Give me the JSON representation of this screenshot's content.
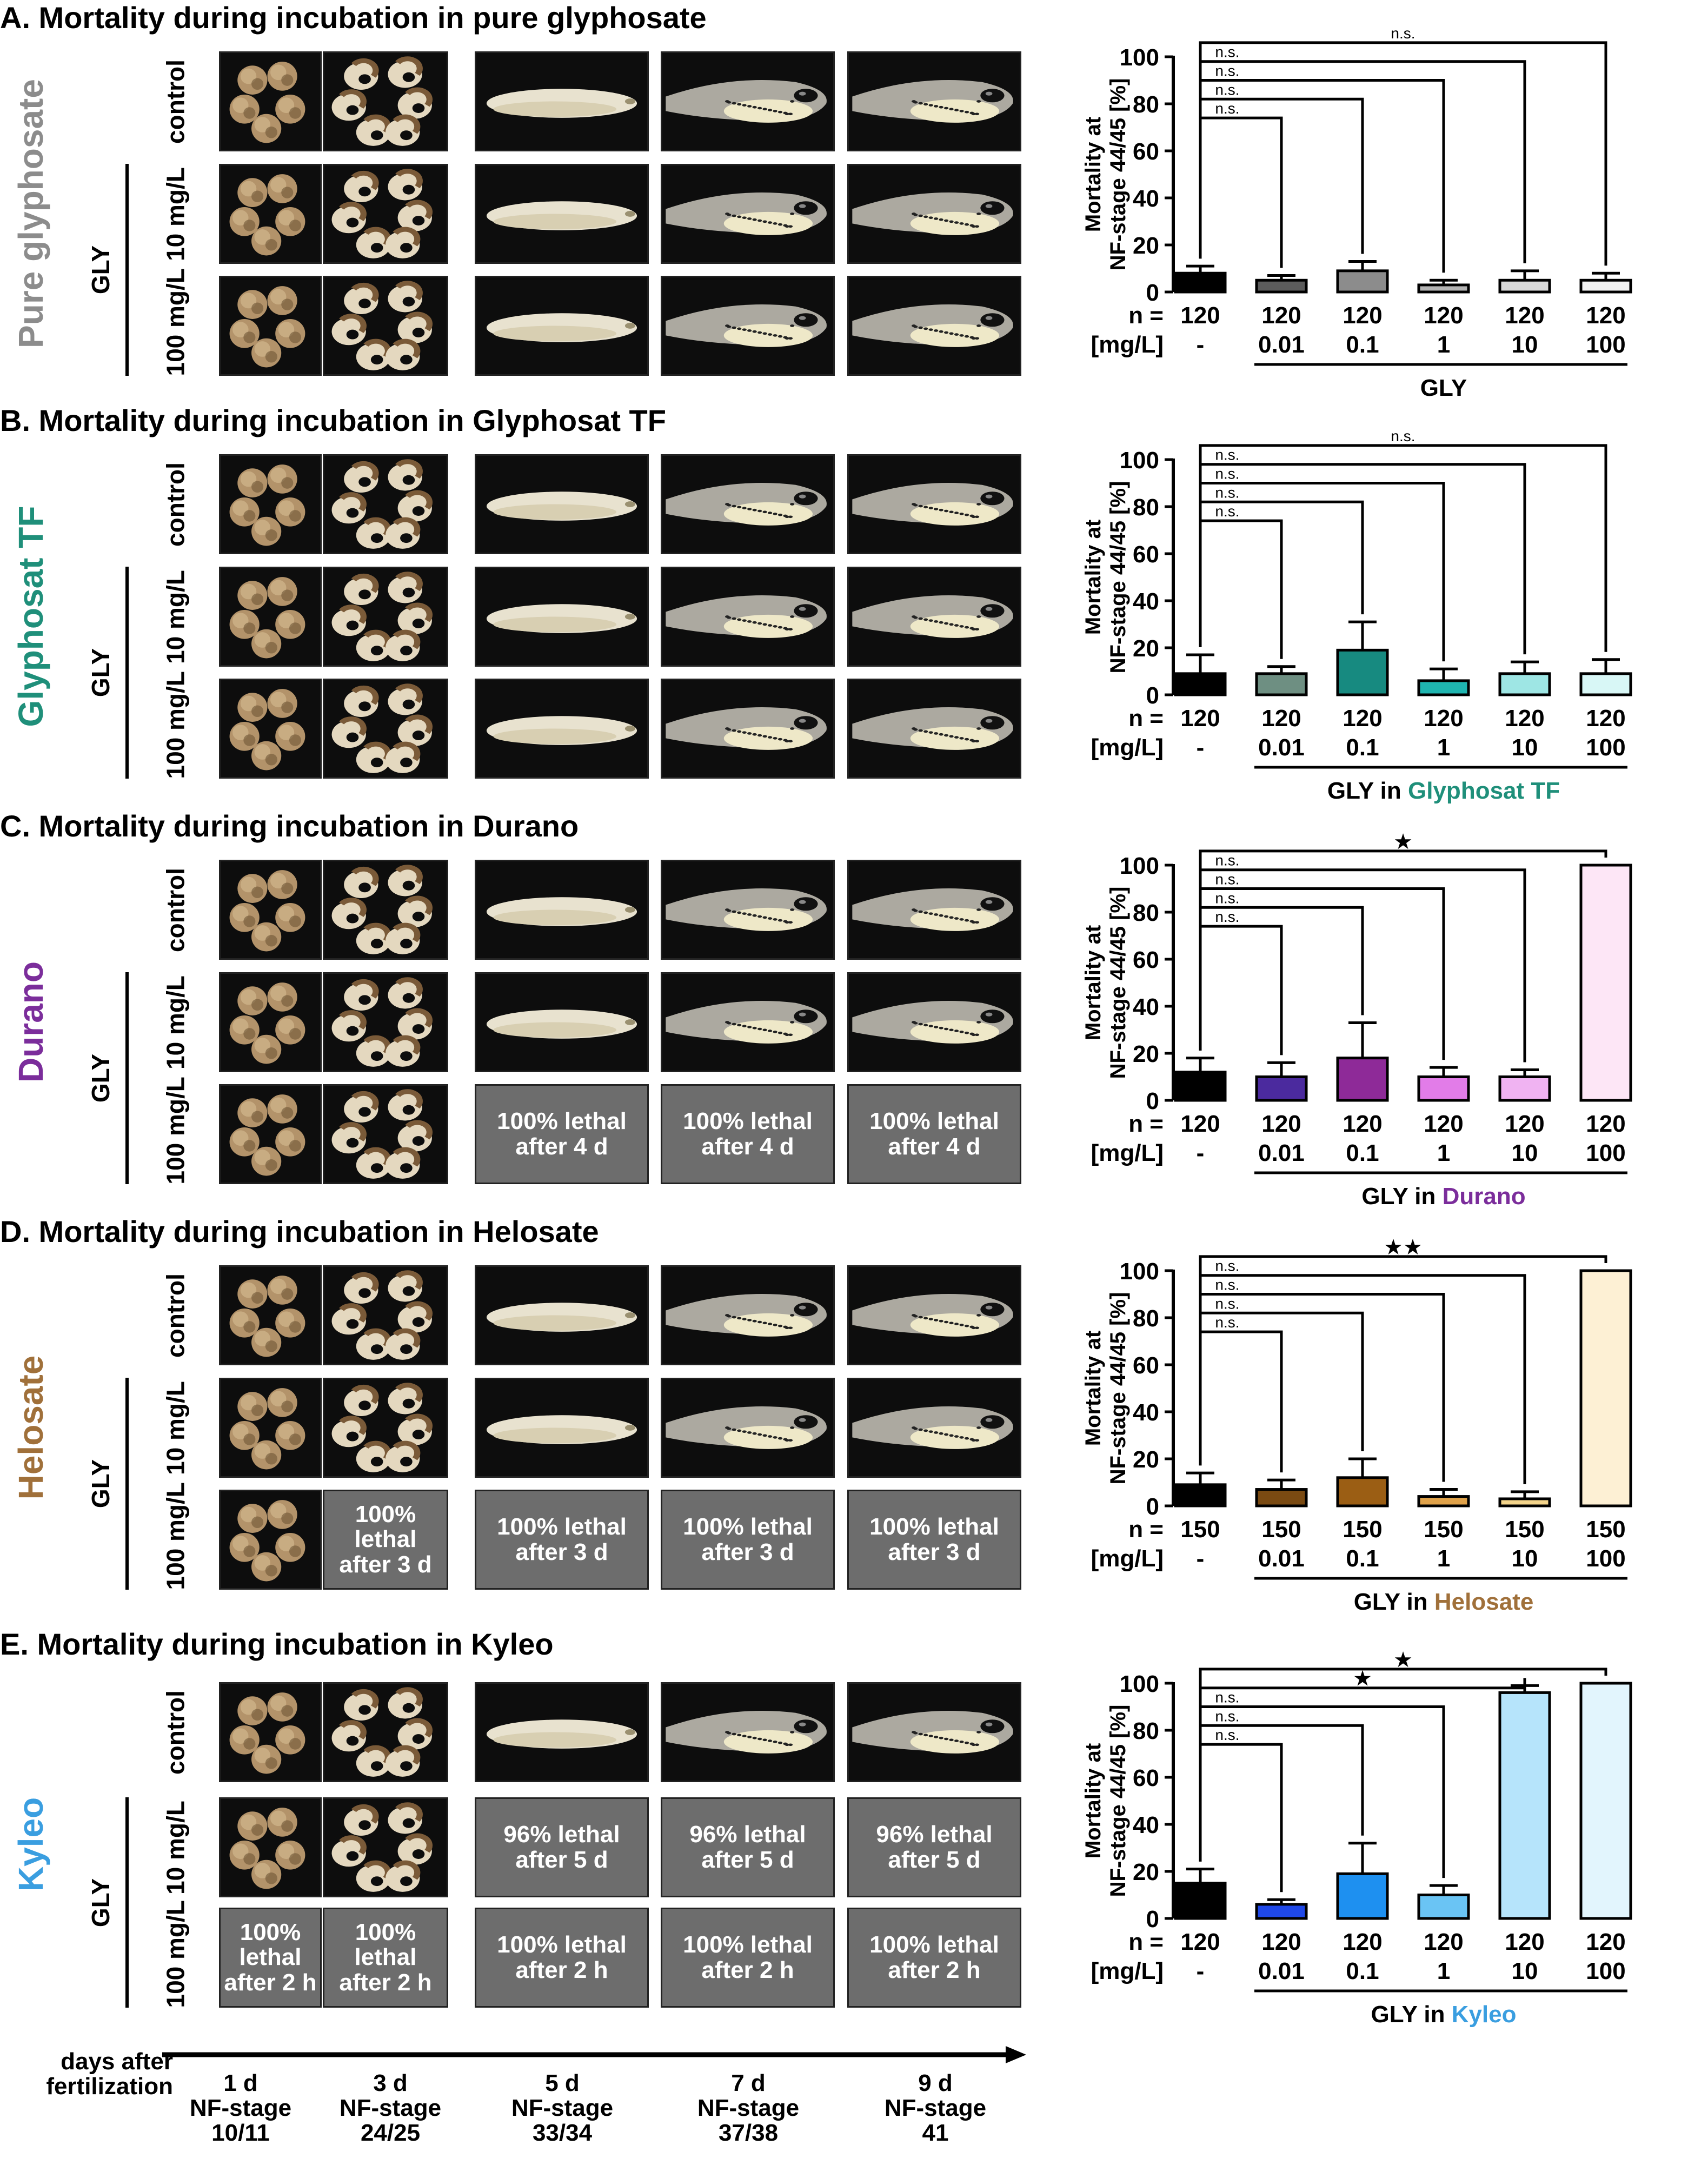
{
  "panels": [
    {
      "title": "A. Mortality during incubation in pure glyphosate",
      "side_label": "Pure glyphosate",
      "side_color": "#8c8c8c",
      "rows": [
        {
          "label": "control",
          "cells": [
            "eggs",
            "embryos-curled",
            "larva-straight",
            "tadpole",
            "tadpole"
          ]
        },
        {
          "label": "10 mg/L",
          "cells": [
            "eggs",
            "embryos-curled",
            "larva-straight",
            "tadpole",
            "tadpole"
          ]
        },
        {
          "label": "100 mg/L",
          "cells": [
            "eggs",
            "embryos-curled",
            "larva-straight",
            "tadpole",
            "tadpole"
          ]
        }
      ],
      "gly_label": "GLY",
      "lethal_texts": {}
    },
    {
      "title": "B. Mortality during incubation in Glyphosat TF",
      "side_label": "Glyphosat TF",
      "side_color": "#1f8f7a",
      "rows": [
        {
          "label": "control",
          "cells": [
            "eggs",
            "embryos-curled",
            "larva-straight",
            "tadpole",
            "tadpole"
          ]
        },
        {
          "label": "10 mg/L",
          "cells": [
            "eggs",
            "embryos-curled",
            "larva-straight",
            "tadpole",
            "tadpole"
          ]
        },
        {
          "label": "100 mg/L",
          "cells": [
            "eggs",
            "embryos-curled",
            "larva-straight",
            "tadpole",
            "tadpole"
          ]
        }
      ],
      "gly_label": "GLY",
      "lethal_texts": {}
    },
    {
      "title": "C. Mortality during incubation in Durano",
      "side_label": "Durano",
      "side_color": "#7b2d9b",
      "rows": [
        {
          "label": "control",
          "cells": [
            "eggs",
            "embryos-curled",
            "larva-straight",
            "tadpole",
            "tadpole"
          ]
        },
        {
          "label": "10 mg/L",
          "cells": [
            "eggs",
            "embryos-curled",
            "larva-straight",
            "tadpole",
            "tadpole"
          ]
        },
        {
          "label": "100 mg/L",
          "cells": [
            "eggs",
            "embryos-curled",
            "100% lethal\nafter 4 d",
            "100% lethal\nafter 4 d",
            "100% lethal\nafter 4 d"
          ]
        }
      ],
      "gly_label": "GLY"
    },
    {
      "title": "D. Mortality during incubation in Helosate",
      "side_label": "Helosate",
      "side_color": "#a0703a",
      "rows": [
        {
          "label": "control",
          "cells": [
            "eggs",
            "embryos-curled",
            "larva-straight",
            "tadpole",
            "tadpole"
          ]
        },
        {
          "label": "10 mg/L",
          "cells": [
            "eggs",
            "embryos-curled",
            "larva-straight",
            "tadpole",
            "tadpole"
          ]
        },
        {
          "label": "100 mg/L",
          "cells": [
            "eggs",
            "100% lethal\nafter 3 d",
            "100% lethal\nafter 3 d",
            "100% lethal\nafter 3 d",
            "100% lethal\nafter 3 d"
          ]
        }
      ],
      "gly_label": "GLY"
    },
    {
      "title": "E. Mortality during incubation in Kyleo",
      "side_label": "Kyleo",
      "side_color": "#3a9ee0",
      "rows": [
        {
          "label": "control",
          "cells": [
            "eggs",
            "embryos-curled",
            "larva-straight",
            "tadpole",
            "tadpole"
          ]
        },
        {
          "label": "10 mg/L",
          "cells": [
            "eggs",
            "embryos-curled",
            "96% lethal\nafter 5 d",
            "96% lethal\nafter 5 d",
            "96% lethal\nafter 5 d"
          ]
        },
        {
          "label": "100 mg/L",
          "cells": [
            "100% lethal\nafter 2 h",
            "100% lethal\nafter 2 h",
            "100% lethal\nafter 2 h",
            "100% lethal\nafter 2 h",
            "100% lethal\nafter 2 h"
          ]
        }
      ],
      "gly_label": "GLY"
    }
  ],
  "timeline": {
    "label": "days after\nfertilization",
    "ticks": [
      "1 d\nNF-stage\n10/11",
      "3 d\nNF-stage\n24/25",
      "5 d\nNF-stage\n33/34",
      "7 d\nNF-stage\n37/38",
      "9 d\nNF-stage\n41"
    ]
  },
  "chart_data": [
    {
      "type": "bar",
      "ylabel": "Mortality at\nNF-stage 44/45 [%]",
      "ylim": [
        0,
        100
      ],
      "yticks": [
        0,
        20,
        40,
        60,
        80,
        100
      ],
      "n_label": "n =",
      "conc_label": "[mg/L]",
      "categories": [
        "-",
        "0.01",
        "0.1",
        "1",
        "10",
        "100"
      ],
      "n": [
        "120",
        "120",
        "120",
        "120",
        "120",
        "120"
      ],
      "values": [
        8,
        5,
        9,
        3,
        5,
        5
      ],
      "errors": [
        3,
        2,
        4,
        2,
        4,
        3
      ],
      "colors": [
        "#000000",
        "#5c5c5c",
        "#8c8c8c",
        "#b4b4b4",
        "#d8d8d8",
        "#f2f2f2"
      ],
      "group_label": "GLY",
      "group_label_colored": "",
      "group_color": "#000000",
      "significance": [
        "n.s.",
        "n.s.",
        "n.s.",
        "n.s.",
        "n.s."
      ]
    },
    {
      "type": "bar",
      "ylabel": "Mortality at\nNF-stage 44/45 [%]",
      "ylim": [
        0,
        100
      ],
      "yticks": [
        0,
        20,
        40,
        60,
        80,
        100
      ],
      "n_label": "n =",
      "conc_label": "[mg/L]",
      "categories": [
        "-",
        "0.01",
        "0.1",
        "1",
        "10",
        "100"
      ],
      "n": [
        "120",
        "120",
        "120",
        "120",
        "120",
        "120"
      ],
      "values": [
        9,
        9,
        19,
        6,
        9,
        9
      ],
      "errors": [
        8,
        3,
        12,
        5,
        5,
        6
      ],
      "colors": [
        "#000000",
        "#6e8f82",
        "#178a80",
        "#1fb5b0",
        "#9ee6e4",
        "#d8f7f6"
      ],
      "group_label": "GLY in ",
      "group_label_colored": "Glyphosat TF",
      "group_color": "#1f8f7a",
      "significance": [
        "n.s.",
        "n.s.",
        "n.s.",
        "n.s.",
        "n.s."
      ]
    },
    {
      "type": "bar",
      "ylabel": "Mortality at\nNF-stage 44/45 [%]",
      "ylim": [
        0,
        100
      ],
      "yticks": [
        0,
        20,
        40,
        60,
        80,
        100
      ],
      "n_label": "n =",
      "conc_label": "[mg/L]",
      "categories": [
        "-",
        "0.01",
        "0.1",
        "1",
        "10",
        "100"
      ],
      "n": [
        "120",
        "120",
        "120",
        "120",
        "120",
        "120"
      ],
      "values": [
        12,
        10,
        18,
        10,
        10,
        100
      ],
      "errors": [
        6,
        6,
        15,
        4,
        3,
        0
      ],
      "colors": [
        "#000000",
        "#4b2a9e",
        "#8e2a98",
        "#e27ce8",
        "#f0b3f2",
        "#fde6f6"
      ],
      "group_label": "GLY in ",
      "group_label_colored": "Durano",
      "group_color": "#7b2d9b",
      "significance": [
        "n.s.",
        "n.s.",
        "n.s.",
        "n.s.",
        "★"
      ]
    },
    {
      "type": "bar",
      "ylabel": "Mortality at\nNF-stage 44/45 [%]",
      "ylim": [
        0,
        100
      ],
      "yticks": [
        0,
        20,
        40,
        60,
        80,
        100
      ],
      "n_label": "n =",
      "conc_label": "[mg/L]",
      "categories": [
        "-",
        "0.01",
        "0.1",
        "1",
        "10",
        "100"
      ],
      "n": [
        "150",
        "150",
        "150",
        "150",
        "150",
        "150"
      ],
      "values": [
        9,
        7,
        12,
        4,
        3,
        100
      ],
      "errors": [
        5,
        4,
        8,
        3,
        3,
        0
      ],
      "colors": [
        "#000000",
        "#7a4a12",
        "#9b5e14",
        "#e0a24a",
        "#f3d48b",
        "#fdf0d4"
      ],
      "group_label": "GLY in ",
      "group_label_colored": "Helosate",
      "group_color": "#a0703a",
      "significance": [
        "n.s.",
        "n.s.",
        "n.s.",
        "n.s.",
        "★★"
      ]
    },
    {
      "type": "bar",
      "ylabel": "Mortality at\nNF-stage 44/45 [%]",
      "ylim": [
        0,
        100
      ],
      "yticks": [
        0,
        20,
        40,
        60,
        80,
        100
      ],
      "n_label": "n =",
      "conc_label": "[mg/L]",
      "categories": [
        "-",
        "0.01",
        "0.1",
        "1",
        "10",
        "100"
      ],
      "n": [
        "120",
        "120",
        "120",
        "120",
        "120",
        "120"
      ],
      "values": [
        15,
        6,
        19,
        10,
        96,
        100
      ],
      "errors": [
        6,
        2,
        13,
        4,
        3,
        0
      ],
      "colors": [
        "#000000",
        "#1f48e8",
        "#1e90f0",
        "#6ac4f4",
        "#b6e4fb",
        "#e2f5fd"
      ],
      "group_label": "GLY in ",
      "group_label_colored": "Kyleo",
      "group_color": "#3a9ee0",
      "significance": [
        "n.s.",
        "n.s.",
        "n.s.",
        "★",
        "★"
      ]
    }
  ]
}
